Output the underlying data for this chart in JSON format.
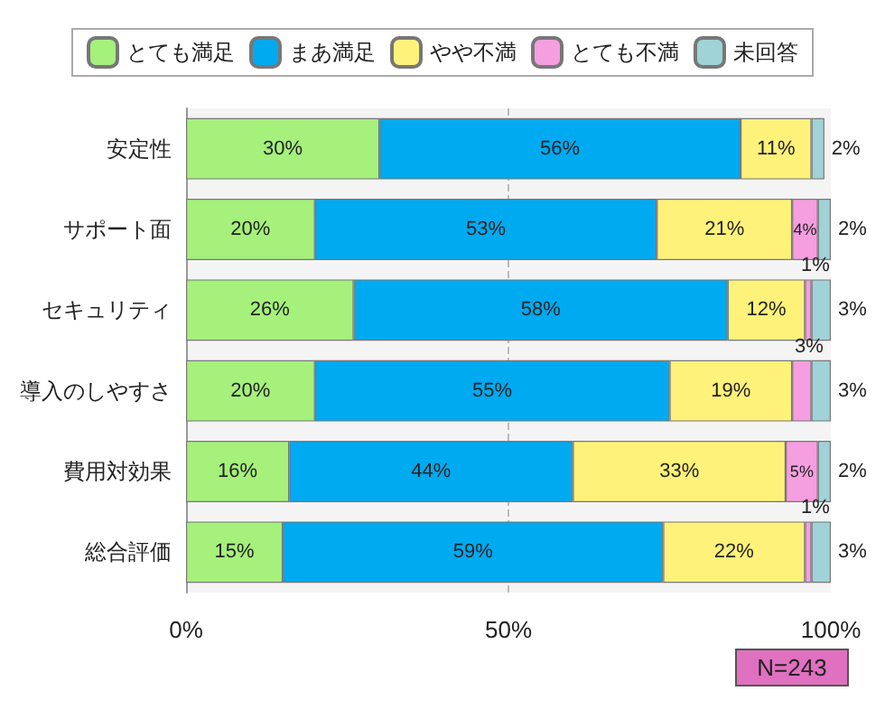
{
  "chart_data": {
    "type": "bar",
    "orientation": "horizontal",
    "stacked": true,
    "categories": [
      "安定性",
      "サポート面",
      "セキュリティ",
      "導入のしやすさ",
      "費用対効果",
      "総合評価"
    ],
    "series": [
      {
        "name": "とても満足",
        "color": "#a6f07c",
        "values": [
          30,
          20,
          26,
          20,
          16,
          15
        ],
        "value_labels": [
          "30%",
          "20%",
          "26%",
          "20%",
          "16%",
          "15%"
        ]
      },
      {
        "name": "まあ満足",
        "color": "#00aaf0",
        "values": [
          56,
          53,
          58,
          55,
          44,
          59
        ],
        "value_labels": [
          "56%",
          "53%",
          "58%",
          "55%",
          "44%",
          "59%"
        ]
      },
      {
        "name": "やや不満",
        "color": "#fff27a",
        "values": [
          11,
          21,
          12,
          19,
          33,
          22
        ],
        "value_labels": [
          "11%",
          "21%",
          "12%",
          "19%",
          "33%",
          "22%"
        ]
      },
      {
        "name": "とても不満",
        "color": "#f59ee0",
        "values": [
          null,
          4,
          1,
          3,
          5,
          1
        ],
        "value_labels": [
          null,
          "4%",
          "1%",
          "3%",
          "5%",
          "1%"
        ]
      },
      {
        "name": "未回答",
        "color": "#9fd3d8",
        "values": [
          2,
          2,
          3,
          3,
          2,
          3
        ],
        "value_labels": [
          "2%",
          "2%",
          "3%",
          "3%",
          "2%",
          "3%"
        ]
      }
    ],
    "xlim": [
      0,
      100
    ],
    "xticks": [
      {
        "value": 0,
        "label": "0%"
      },
      {
        "value": 50,
        "label": "50%"
      },
      {
        "value": 100,
        "label": "100%"
      }
    ],
    "grid": "x",
    "legend": "top",
    "annotations": [
      "N=243"
    ]
  }
}
